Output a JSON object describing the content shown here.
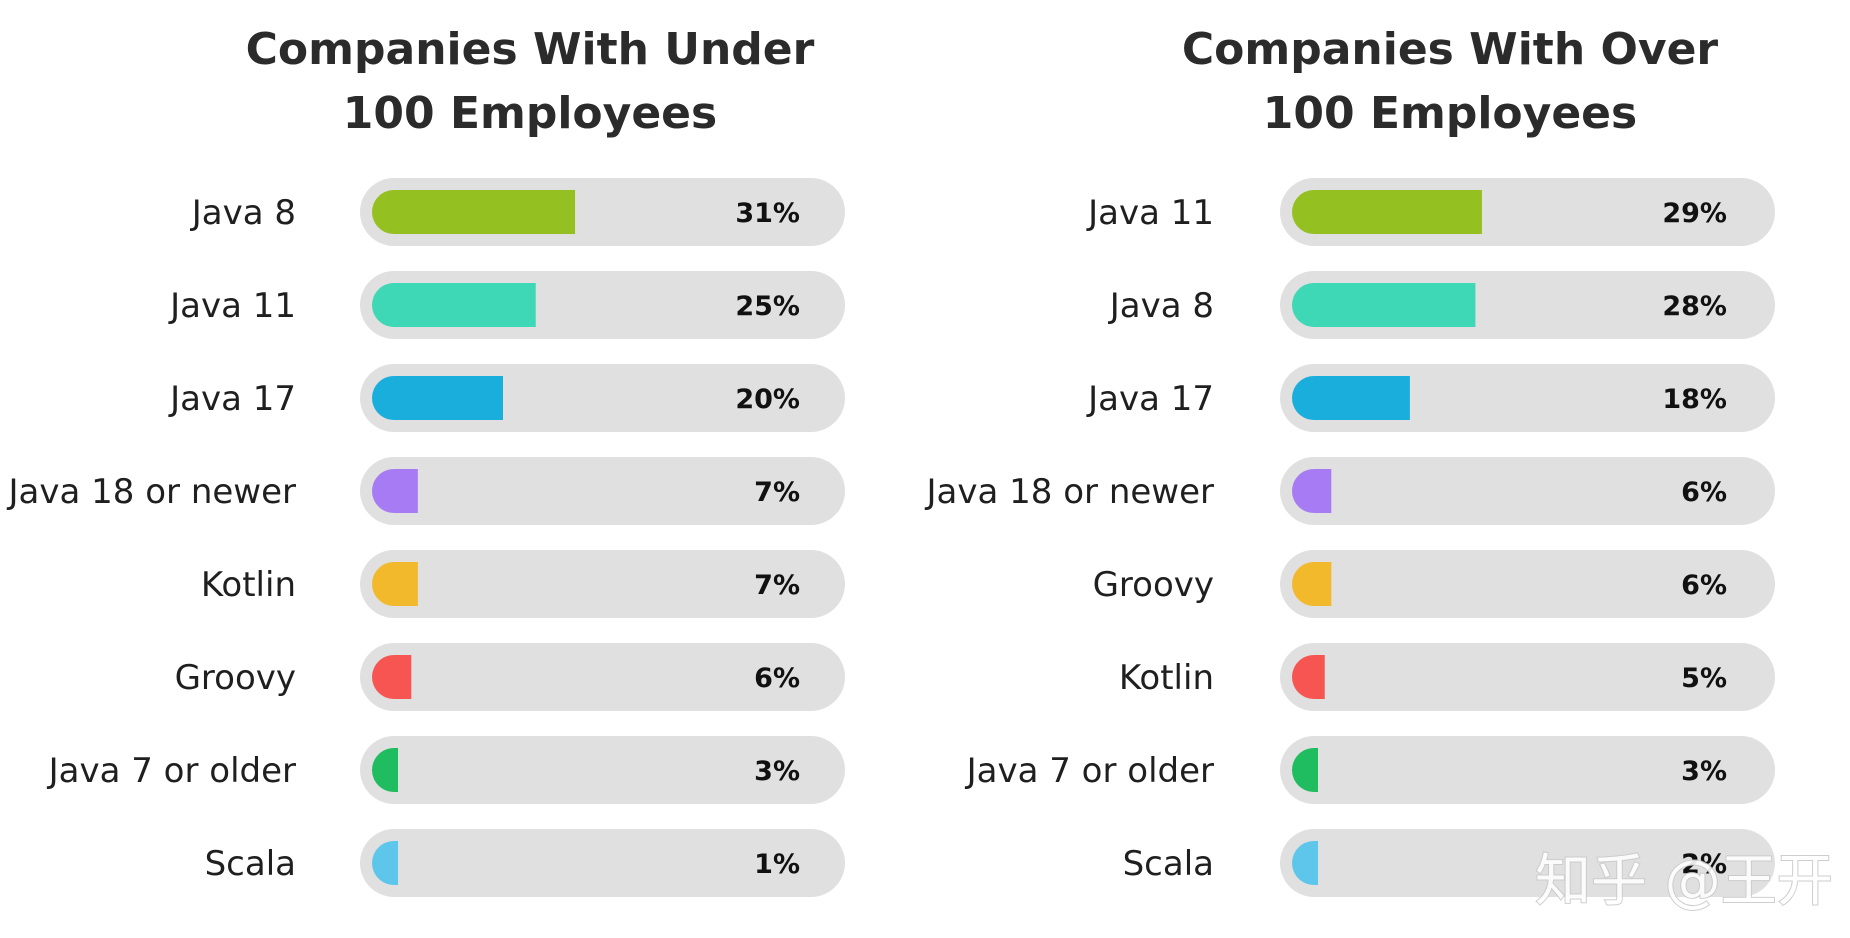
{
  "chart_data": [
    {
      "type": "bar",
      "orientation": "horizontal",
      "title_lines": [
        "Companies With Under",
        "100 Employees"
      ],
      "categories": [
        "Java 8",
        "Java 11",
        "Java 17",
        "Java 18 or newer",
        "Kotlin",
        "Groovy",
        "Java 7 or older",
        "Scala"
      ],
      "values": [
        31,
        25,
        20,
        7,
        7,
        6,
        3,
        1
      ],
      "value_labels": [
        "31%",
        "25%",
        "20%",
        "7%",
        "7%",
        "6%",
        "3%",
        "1%"
      ],
      "colors": [
        "#95c022",
        "#3fd8b6",
        "#1aaedc",
        "#a77bf3",
        "#f1b92b",
        "#f75552",
        "#1fbd5f",
        "#5ec6ea"
      ],
      "xlim": [
        0,
        100
      ]
    },
    {
      "type": "bar",
      "orientation": "horizontal",
      "title_lines": [
        "Companies With Over",
        "100 Employees"
      ],
      "categories": [
        "Java 11",
        "Java 8",
        "Java 17",
        "Java 18 or newer",
        "Groovy",
        "Kotlin",
        "Java 7 or older",
        "Scala"
      ],
      "values": [
        29,
        28,
        18,
        6,
        6,
        5,
        3,
        2
      ],
      "value_labels": [
        "29%",
        "28%",
        "18%",
        "6%",
        "6%",
        "5%",
        "3%",
        "2%"
      ],
      "colors": [
        "#95c022",
        "#3fd8b6",
        "#1aaedc",
        "#a77bf3",
        "#f1b92b",
        "#f75552",
        "#1fbd5f",
        "#5ec6ea"
      ],
      "xlim": [
        0,
        100
      ]
    }
  ],
  "watermark": "知乎 @王开",
  "track_color": "#e0e0e0"
}
